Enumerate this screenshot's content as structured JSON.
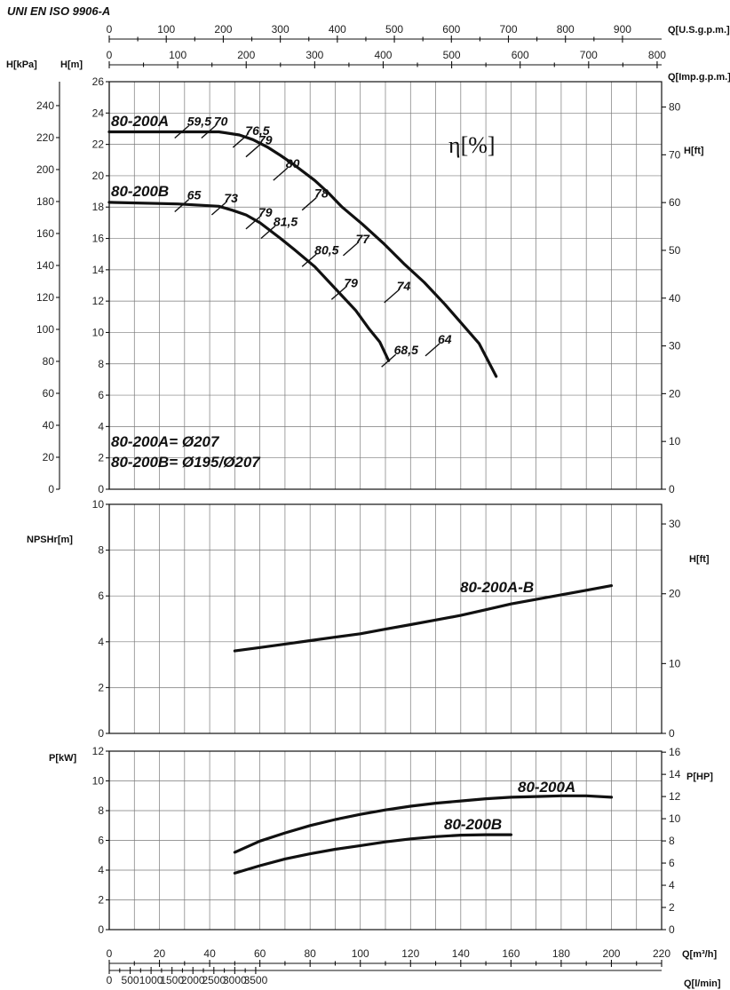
{
  "standard": "UNI EN ISO 9906-A",
  "chart_data": [
    {
      "type": "line",
      "id": "head",
      "ylabel": "H[m]",
      "ylim": [
        0,
        26
      ],
      "yticks": [
        0,
        2,
        4,
        6,
        8,
        10,
        12,
        14,
        16,
        18,
        20,
        22,
        24,
        26
      ],
      "secondary_y_left": {
        "label": "H[kPa]",
        "ticks": [
          0,
          20,
          40,
          60,
          80,
          100,
          120,
          140,
          160,
          180,
          200,
          220,
          240
        ]
      },
      "secondary_y_right": {
        "label": "H[ft]",
        "ticks": [
          0,
          10,
          20,
          30,
          40,
          50,
          60,
          70,
          80
        ]
      },
      "efficiency_label": "η[%]",
      "series": [
        {
          "name": "80-200A",
          "x": [
            0,
            100,
            160,
            190,
            210,
            232,
            250,
            270,
            300,
            320,
            340,
            370,
            400,
            430,
            460,
            490,
            510,
            540,
            565
          ],
          "y": [
            22.8,
            22.8,
            22.8,
            22.6,
            22.3,
            21.8,
            21.3,
            20.7,
            19.7,
            18.9,
            18.0,
            16.9,
            15.7,
            14.4,
            13.2,
            11.8,
            10.8,
            9.3,
            7.2
          ]
        },
        {
          "name": "80-200B",
          "x": [
            0,
            100,
            160,
            180,
            200,
            220,
            232,
            250,
            270,
            300,
            330,
            360,
            380,
            395,
            408
          ],
          "y": [
            18.3,
            18.2,
            18.05,
            17.8,
            17.5,
            17.0,
            16.6,
            16.0,
            15.3,
            14.2,
            12.8,
            11.4,
            10.2,
            9.4,
            8.2
          ]
        }
      ],
      "efficiency_marks": [
        {
          "series": "80-200A",
          "label": "59,5",
          "x": 106,
          "y": 22.8
        },
        {
          "series": "80-200A",
          "label": "70",
          "x": 145,
          "y": 22.8
        },
        {
          "series": "80-200A",
          "label": "76,5",
          "x": 191,
          "y": 22.2
        },
        {
          "series": "80-200A",
          "label": "79",
          "x": 210,
          "y": 21.6
        },
        {
          "series": "80-200A",
          "label": "80",
          "x": 250,
          "y": 20.1
        },
        {
          "series": "80-200A",
          "label": "78",
          "x": 292,
          "y": 18.2
        },
        {
          "series": "80-200A",
          "label": "77",
          "x": 352,
          "y": 15.3
        },
        {
          "series": "80-200A",
          "label": "74",
          "x": 412,
          "y": 12.3
        },
        {
          "series": "80-200A",
          "label": "64",
          "x": 472,
          "y": 8.9
        },
        {
          "series": "80-200B",
          "label": "65",
          "x": 106,
          "y": 18.1
        },
        {
          "series": "80-200B",
          "label": "73",
          "x": 160,
          "y": 17.9
        },
        {
          "series": "80-200B",
          "label": "79",
          "x": 210,
          "y": 17.0
        },
        {
          "series": "80-200B",
          "label": "81,5",
          "x": 232,
          "y": 16.4
        },
        {
          "series": "80-200B",
          "label": "80,5",
          "x": 292,
          "y": 14.6
        },
        {
          "series": "80-200B",
          "label": "79",
          "x": 335,
          "y": 12.5
        },
        {
          "series": "80-200B",
          "label": "68,5",
          "x": 408,
          "y": 8.2
        }
      ],
      "annotations": [
        "80-200A= Ø207",
        "80-200B= Ø195/Ø207"
      ]
    },
    {
      "type": "line",
      "id": "npsh",
      "ylabel": "NPSHr[m]",
      "ylim": [
        0,
        10
      ],
      "yticks": [
        0,
        2,
        4,
        6,
        8,
        10
      ],
      "secondary_y_right": {
        "label": "H[ft]",
        "ticks": [
          0,
          10,
          20,
          30
        ]
      },
      "series": [
        {
          "name": "80-200A-B",
          "x": [
            50,
            60,
            70,
            80,
            90,
            100,
            110,
            120,
            130,
            140,
            150,
            160,
            170,
            180,
            190,
            200
          ],
          "y": [
            3.6,
            3.75,
            3.9,
            4.05,
            4.2,
            4.35,
            4.55,
            4.75,
            4.95,
            5.15,
            5.4,
            5.65,
            5.85,
            6.05,
            6.25,
            6.45
          ]
        }
      ]
    },
    {
      "type": "line",
      "id": "power",
      "ylabel": "P[kW]",
      "ylim": [
        0,
        12
      ],
      "yticks": [
        0,
        2,
        4,
        6,
        8,
        10,
        12
      ],
      "secondary_y_right": {
        "label": "P[HP]",
        "ticks": [
          0,
          2,
          4,
          6,
          8,
          10,
          12,
          14,
          16
        ]
      },
      "series": [
        {
          "name": "80-200A",
          "x": [
            50,
            60,
            70,
            80,
            90,
            100,
            110,
            120,
            130,
            140,
            150,
            160,
            170,
            180,
            190,
            200
          ],
          "y": [
            5.2,
            5.95,
            6.5,
            7.0,
            7.4,
            7.75,
            8.05,
            8.3,
            8.5,
            8.65,
            8.8,
            8.9,
            8.95,
            9.0,
            9.0,
            8.9
          ]
        },
        {
          "name": "80-200B",
          "x": [
            50,
            60,
            70,
            80,
            90,
            100,
            110,
            120,
            130,
            140,
            150,
            160
          ],
          "y": [
            3.8,
            4.3,
            4.75,
            5.1,
            5.4,
            5.65,
            5.9,
            6.1,
            6.25,
            6.35,
            6.38,
            6.38
          ]
        }
      ]
    }
  ],
  "x_axes": {
    "m3h": {
      "label": "Q[m³/h]",
      "ticks": [
        0,
        20,
        40,
        60,
        80,
        100,
        120,
        140,
        160,
        180,
        200,
        220
      ]
    },
    "lmin": {
      "label": "Q[l/min]",
      "ticks": [
        0,
        500,
        1000,
        1500,
        2000,
        2500,
        3000,
        3500
      ]
    },
    "usgpm": {
      "label": "Q[U.S.g.p.m.]",
      "ticks": [
        0,
        100,
        200,
        300,
        400,
        500,
        600,
        700,
        800,
        900
      ]
    },
    "impgpm": {
      "label": "Q[Imp.g.p.m.]",
      "ticks": [
        0,
        100,
        200,
        300,
        400,
        500,
        600,
        700,
        800
      ]
    }
  }
}
